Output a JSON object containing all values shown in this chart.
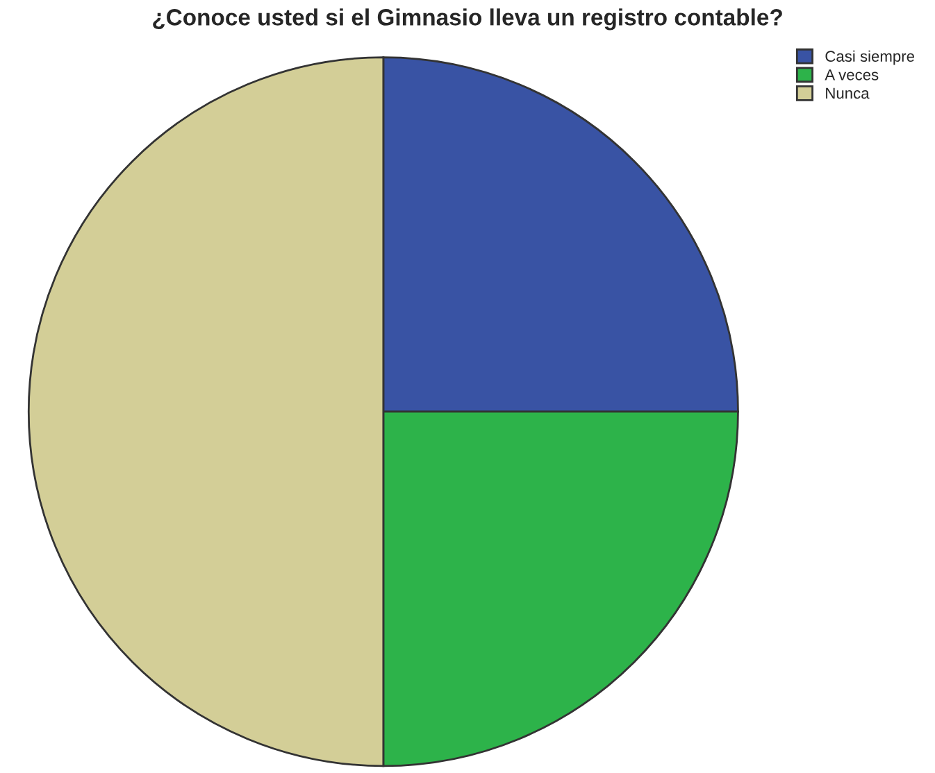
{
  "chart_data": {
    "type": "pie",
    "title": "¿Conoce usted si el Gimnasio lleva un registro contable?",
    "categories": [
      "Casi siempre",
      "A veces",
      "Nunca"
    ],
    "values": [
      25,
      25,
      50
    ],
    "colors": [
      "#3953a4",
      "#2db34a",
      "#d3ce97"
    ],
    "legend": "top right"
  }
}
